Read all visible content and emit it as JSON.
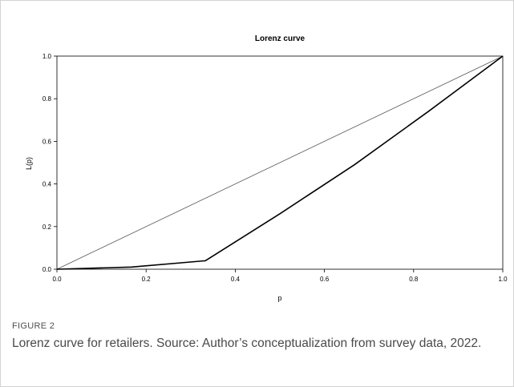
{
  "chart_data": {
    "type": "line",
    "title": "Lorenz curve",
    "xlabel": "p",
    "ylabel": "L(p)",
    "xlim": [
      0,
      1
    ],
    "ylim": [
      0,
      1
    ],
    "xticks": [
      "0.0",
      "0.2",
      "0.4",
      "0.6",
      "0.8",
      "1.0"
    ],
    "yticks": [
      "0.0",
      "0.2",
      "0.4",
      "0.6",
      "0.8",
      "1.0"
    ],
    "grid": false,
    "series": [
      {
        "x": [
          0,
          1
        ],
        "y": [
          0,
          1
        ],
        "color": "#555555"
      },
      {
        "x": [
          0,
          0.167,
          0.333,
          0.5,
          0.667,
          0.833,
          1.0
        ],
        "y": [
          0,
          0.01,
          0.04,
          0.26,
          0.49,
          0.74,
          1.0
        ],
        "color": "#000000"
      }
    ]
  },
  "figure": {
    "label": "FIGURE 2",
    "caption": "Lorenz curve for retailers. Source: Author’s conceptualization from survey data, 2022."
  }
}
